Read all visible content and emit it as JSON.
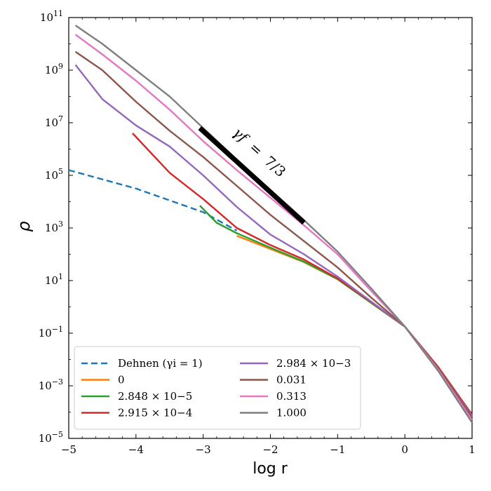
{
  "chart_data": {
    "type": "line",
    "title": "",
    "xlabel": "log r",
    "ylabel": "ρ",
    "xlim": [
      -5,
      1
    ],
    "ylim_log10": [
      -5,
      11
    ],
    "y_scale": "log",
    "x_ticks": [
      -5,
      -4,
      -3,
      -2,
      -1,
      0,
      1
    ],
    "x_tick_labels": [
      "−5",
      "−4",
      "−3",
      "−2",
      "−1",
      "0",
      "1"
    ],
    "y_ticks_log10": [
      -5,
      -3,
      -1,
      1,
      3,
      5,
      7,
      9,
      11
    ],
    "y_tick_base": "10",
    "y_tick_exponents": [
      "−5",
      "−3",
      "−1",
      "1",
      "3",
      "5",
      "7",
      "9",
      "11"
    ],
    "legend_position": "lower-left",
    "series": [
      {
        "name": "Dehnen (γi = 1)",
        "color": "#1f77b4",
        "dash": true,
        "x": [
          -5,
          -4,
          -3,
          -2.5
        ],
        "log10_y": [
          5.2,
          4.5,
          3.6,
          2.9
        ]
      },
      {
        "name": "0",
        "color": "#ff7f0e",
        "x": [
          -2.5,
          -2,
          -1.5,
          -1,
          -0.5,
          0,
          0.5,
          1
        ],
        "log10_y": [
          2.7,
          2.2,
          1.7,
          1.05,
          0.15,
          -0.75,
          -2.3,
          -4.1
        ]
      },
      {
        "name": "2.848 × 10−5",
        "color": "#2ca02c",
        "x": [
          -3.05,
          -2.8,
          -2.5,
          -2,
          -1.5,
          -1,
          -0.5,
          0,
          0.5,
          1
        ],
        "log10_y": [
          3.85,
          3.2,
          2.8,
          2.25,
          1.72,
          1.05,
          0.15,
          -0.75,
          -2.3,
          -4.1
        ]
      },
      {
        "name": "2.915 × 10−4",
        "color": "#d62728",
        "x": [
          -4.05,
          -3.5,
          -3,
          -2.5,
          -2,
          -1.5,
          -1,
          -0.5,
          0,
          0.5,
          1
        ],
        "log10_y": [
          6.6,
          5.1,
          4.1,
          3.0,
          2.35,
          1.8,
          1.08,
          0.18,
          -0.75,
          -2.3,
          -4.1
        ]
      },
      {
        "name": "2.984 × 10−3",
        "color": "#9467bd",
        "x": [
          -4.9,
          -4.5,
          -4,
          -3.5,
          -3,
          -2.5,
          -2,
          -1.5,
          -1,
          -0.5,
          0,
          0.5,
          1
        ],
        "log10_y": [
          9.2,
          7.9,
          6.9,
          6.1,
          5.0,
          3.8,
          2.75,
          2.0,
          1.15,
          0.2,
          -0.75,
          -2.35,
          -4.15
        ]
      },
      {
        "name": "0.031",
        "color": "#8c564b",
        "x": [
          -4.9,
          -4.5,
          -4,
          -3.5,
          -3,
          -2.5,
          -2,
          -1.5,
          -1,
          -0.5,
          0,
          0.5,
          1
        ],
        "log10_y": [
          9.7,
          9.0,
          7.8,
          6.7,
          5.7,
          4.6,
          3.5,
          2.5,
          1.5,
          0.35,
          -0.75,
          -2.35,
          -4.2
        ]
      },
      {
        "name": "0.313",
        "color": "#e377c2",
        "x": [
          -4.9,
          -4.5,
          -4,
          -3.5,
          -3,
          -2.5,
          -2,
          -1.5,
          -1,
          -0.5,
          0,
          0.5,
          1
        ],
        "log10_y": [
          10.35,
          9.6,
          8.6,
          7.5,
          6.3,
          5.2,
          4.15,
          3.1,
          2.0,
          0.6,
          -0.75,
          -2.4,
          -4.3
        ]
      },
      {
        "name": "1.000",
        "color": "#7f7f7f",
        "x": [
          -4.9,
          -4.5,
          -4,
          -3.5,
          -3,
          -2.5,
          -2,
          -1.5,
          -1,
          -0.5,
          0,
          0.5,
          1
        ],
        "log10_y": [
          10.7,
          10.0,
          9.0,
          8.0,
          6.8,
          5.6,
          4.45,
          3.3,
          2.1,
          0.7,
          -0.75,
          -2.45,
          -4.4
        ]
      }
    ],
    "reference_line": {
      "label_lhs": "γf",
      "label_rhs": "7/3",
      "x": [
        -3.05,
        -1.5
      ],
      "log10_y": [
        6.8,
        3.2
      ]
    }
  }
}
